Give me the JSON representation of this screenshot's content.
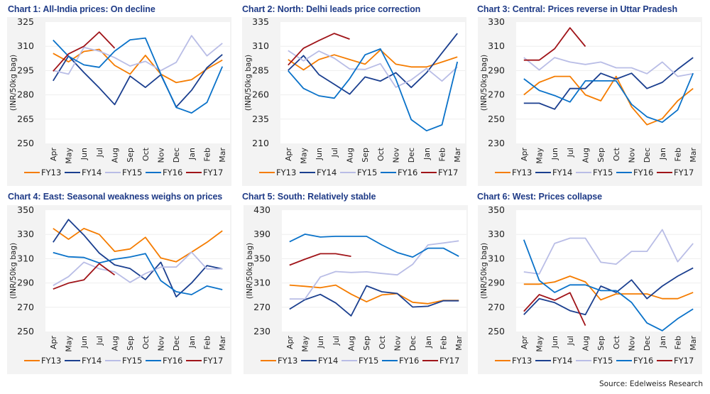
{
  "source": "Source: Edelweiss Research",
  "colors": {
    "FY13": "#f57c00",
    "FY14": "#1b3f8f",
    "FY15": "#b9bde6",
    "FY16": "#0a72c9",
    "FY17": "#a01419"
  },
  "chart_data": [
    {
      "type": "line",
      "title": "Chart 1: All-India prices: On decline",
      "xlabel": "",
      "ylabel": "(INR/50kg bag)",
      "categories": [
        "Apr",
        "May",
        "Jun",
        "Jul",
        "Aug",
        "Sep",
        "Oct",
        "Nov",
        "Dec",
        "Jan",
        "Feb",
        "Mar"
      ],
      "ylim": [
        250,
        325
      ],
      "yticks": [
        250,
        265,
        280,
        295,
        310,
        325
      ],
      "grid": true,
      "legend": "bottom",
      "series": [
        {
          "name": "FY13",
          "values": [
            305.6,
            300.4,
            306.8,
            308.1,
            298.2,
            292.8,
            304.4,
            292.8,
            287.6,
            289.4,
            296.0,
            301.5
          ]
        },
        {
          "name": "FY14",
          "values": [
            288.7,
            304.0,
            293.8,
            284.3,
            274.0,
            291.6,
            284.6,
            292.4,
            272.5,
            282.8,
            296.8,
            304.9
          ]
        },
        {
          "name": "FY15",
          "values": [
            295.0,
            292.8,
            309.3,
            307.0,
            303.0,
            297.8,
            300.7,
            295.0,
            300.1,
            316.6,
            304.1,
            311.9
          ]
        },
        {
          "name": "FY16",
          "values": [
            313.8,
            303.8,
            298.5,
            297.0,
            307.0,
            314.0,
            315.1,
            292.8,
            272.2,
            268.8,
            275.3,
            297.5
          ]
        },
        {
          "name": "FY17",
          "values": [
            294.6,
            305.3,
            310.0,
            318.8,
            308.8
          ]
        }
      ]
    },
    {
      "type": "line",
      "title": "Chart 2: North: Delhi leads price correction",
      "xlabel": "",
      "ylabel": "(INR/50kg bag)",
      "categories": [
        "Apr",
        "May",
        "Jun",
        "Jul",
        "Aug",
        "Sep",
        "Oct",
        "Nov",
        "Dec",
        "Jan",
        "Feb",
        "Mar"
      ],
      "ylim": [
        210,
        335
      ],
      "yticks": [
        210,
        235,
        260,
        285,
        310,
        335
      ],
      "grid": true,
      "legend": "bottom",
      "series": [
        {
          "name": "FY13",
          "values": [
            296.3,
            285.7,
            296.3,
            301.2,
            296.3,
            291.6,
            306.3,
            291.6,
            288.7,
            288.7,
            293.8,
            299.0
          ]
        },
        {
          "name": "FY14",
          "values": [
            285.2,
            300.4,
            280.8,
            270.8,
            260.7,
            278.4,
            274.2,
            282.8,
            267.6,
            282.8,
            303.1,
            323.2
          ]
        },
        {
          "name": "FY15",
          "values": [
            305.6,
            295.0,
            305.1,
            297.7,
            286.7,
            286.2,
            292.1,
            267.8,
            275.4,
            287.2,
            274.2,
            288.7
          ]
        },
        {
          "name": "FY16",
          "values": [
            284.8,
            266.6,
            259.0,
            256.6,
            276.7,
            301.2,
            307.3,
            276.2,
            234.5,
            223.0,
            229.1,
            294.1
          ]
        },
        {
          "name": "FY17",
          "values": [
            290.6,
            308.0,
            315.9,
            323.2,
            317.4
          ]
        }
      ]
    },
    {
      "type": "line",
      "title": "Chart 3: Central: Prices reverse in Uttar Pradesh",
      "xlabel": "",
      "ylabel": "(INR/50kg bag)",
      "categories": [
        "Apr",
        "May",
        "Jun",
        "Jul",
        "Aug",
        "Sep",
        "Oct",
        "Nov",
        "Dec",
        "Jan",
        "Feb",
        "Mar"
      ],
      "ylim": [
        230,
        330
      ],
      "yticks": [
        230,
        250,
        270,
        290,
        310,
        330
      ],
      "grid": true,
      "legend": "bottom",
      "series": [
        {
          "name": "FY13",
          "values": [
            270.0,
            280.3,
            285.2,
            285.2,
            270.0,
            265.1,
            285.2,
            260.2,
            245.4,
            250.4,
            265.1,
            275.2
          ]
        },
        {
          "name": "FY14",
          "values": [
            263.1,
            263.1,
            258.2,
            275.2,
            275.2,
            287.8,
            283.0,
            287.8,
            275.2,
            280.3,
            291.1,
            300.7
          ]
        },
        {
          "name": "FY15",
          "values": [
            300.7,
            290.5,
            300.7,
            297.0,
            295.0,
            297.0,
            292.3,
            292.3,
            287.4,
            297.0,
            285.2,
            287.4
          ]
        },
        {
          "name": "FY16",
          "values": [
            283.2,
            273.6,
            269.4,
            264.1,
            281.5,
            281.5,
            281.5,
            262.2,
            251.9,
            247.4,
            257.6,
            287.8
          ]
        },
        {
          "name": "FY17",
          "values": [
            298.6,
            298.6,
            308.0,
            325.2,
            309.8
          ]
        }
      ]
    },
    {
      "type": "line",
      "title": "Chart 4: East: Seasonal weakness weighs on prices",
      "xlabel": "",
      "ylabel": "(INR/50kg bag)",
      "categories": [
        "Apr",
        "May",
        "Jun",
        "Jul",
        "Aug",
        "Sep",
        "Oct",
        "Nov",
        "Dec",
        "Jan",
        "Feb",
        "Mar"
      ],
      "ylim": [
        250,
        350
      ],
      "yticks": [
        250,
        270,
        290,
        310,
        330,
        350
      ],
      "grid": true,
      "legend": "bottom",
      "series": [
        {
          "name": "FY13",
          "values": [
            334.9,
            326.0,
            334.9,
            330.0,
            316.0,
            318.0,
            327.6,
            310.6,
            307.5,
            315.4,
            323.5,
            333.0
          ]
        },
        {
          "name": "FY14",
          "values": [
            323.5,
            342.3,
            329.4,
            314.6,
            304.9,
            301.9,
            292.8,
            307.1,
            278.6,
            290.0,
            304.3,
            301.5
          ]
        },
        {
          "name": "FY15",
          "values": [
            287.9,
            295.2,
            307.1,
            301.7,
            299.2,
            290.5,
            297.8,
            303.1,
            303.1,
            315.4,
            301.5,
            301.5
          ]
        },
        {
          "name": "FY16",
          "values": [
            315.0,
            311.6,
            311.0,
            306.5,
            309.6,
            311.4,
            314.2,
            291.9,
            282.8,
            280.4,
            287.5,
            284.5
          ]
        },
        {
          "name": "FY17",
          "values": [
            285.0,
            289.9,
            292.6,
            305.9,
            296.6
          ]
        }
      ]
    },
    {
      "type": "line",
      "title": "Chart 5: South: Relatively stable",
      "xlabel": "",
      "ylabel": "(INR/50kg bag)",
      "categories": [
        "Apr",
        "May",
        "Jun",
        "Jul",
        "Aug",
        "Sep",
        "Oct",
        "Nov",
        "Dec",
        "Jan",
        "Feb",
        "Mar"
      ],
      "ylim": [
        230,
        430
      ],
      "yticks": [
        230,
        270,
        310,
        350,
        390,
        430
      ],
      "grid": true,
      "legend": "bottom",
      "series": [
        {
          "name": "FY13",
          "values": [
            306.5,
            304.5,
            302.2,
            306.5,
            291.6,
            279.0,
            290.4,
            292.4,
            278.2,
            275.9,
            281.4,
            281.4
          ]
        },
        {
          "name": "FY14",
          "values": [
            266.9,
            282.5,
            291.2,
            277.1,
            255.9,
            305.3,
            295.5,
            292.7,
            270.4,
            271.6,
            280.6,
            280.6
          ]
        },
        {
          "name": "FY15",
          "values": [
            283.7,
            283.7,
            319.8,
            328.8,
            327.3,
            328.4,
            325.7,
            323.3,
            340.6,
            372.7,
            375.9,
            379.4
          ]
        },
        {
          "name": "FY16",
          "values": [
            377.8,
            390.4,
            385.7,
            386.9,
            386.9,
            386.9,
            372.7,
            360.2,
            352.7,
            367.3,
            367.3,
            353.9
          ]
        },
        {
          "name": "FY17",
          "values": [
            339.4,
            349.2,
            358.2,
            358.2,
            353.9
          ]
        }
      ]
    },
    {
      "type": "line",
      "title": "Chart 6: West: Prices collapse",
      "xlabel": "",
      "ylabel": "(INR/50kg bag)",
      "categories": [
        "Apr",
        "May",
        "Jun",
        "Jul",
        "Aug",
        "Sep",
        "Oct",
        "Nov",
        "Dec",
        "Jan",
        "Feb",
        "Mar"
      ],
      "ylim": [
        250,
        350
      ],
      "yticks": [
        250,
        270,
        290,
        310,
        330,
        350
      ],
      "grid": true,
      "legend": "bottom",
      "series": [
        {
          "name": "FY13",
          "values": [
            289.0,
            289.0,
            290.9,
            295.6,
            290.9,
            276.1,
            281.0,
            281.0,
            281.0,
            277.1,
            277.1,
            282.2
          ]
        },
        {
          "name": "FY14",
          "values": [
            263.9,
            277.1,
            273.8,
            267.2,
            263.9,
            287.4,
            282.2,
            292.5,
            277.1,
            287.4,
            295.6,
            302.4
          ]
        },
        {
          "name": "FY15",
          "values": [
            299.1,
            297.4,
            322.6,
            326.9,
            326.9,
            307.1,
            305.5,
            316.0,
            316.0,
            333.9,
            307.5,
            322.6
          ]
        },
        {
          "name": "FY16",
          "values": [
            325.6,
            292.1,
            282.2,
            288.4,
            288.4,
            283.7,
            283.7,
            274.0,
            257.1,
            250.7,
            260.6,
            268.6
          ]
        },
        {
          "name": "FY17",
          "values": [
            266.6,
            280.4,
            275.8,
            282.0,
            254.9
          ]
        }
      ]
    }
  ]
}
